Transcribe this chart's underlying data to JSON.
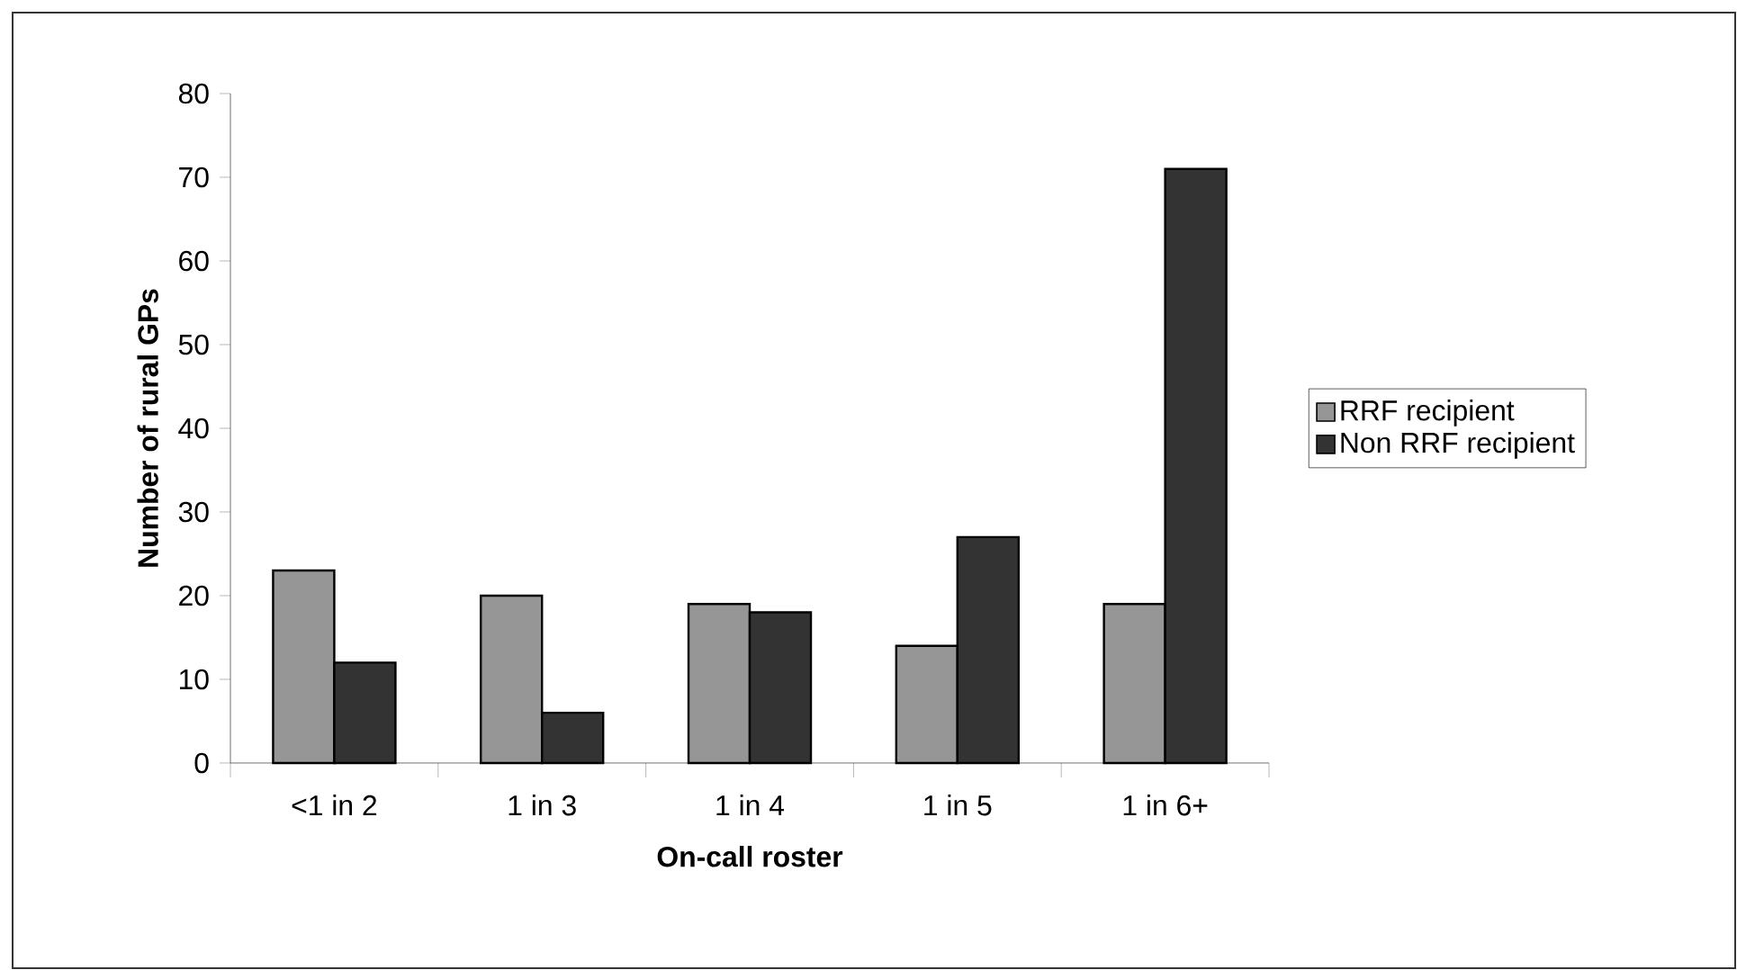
{
  "chart_data": {
    "type": "bar",
    "xlabel": "On-call roster",
    "ylabel": "Number of rural GPs",
    "categories": [
      "<1 in 2",
      "1 in 3",
      "1 in 4",
      "1 in 5",
      "1 in 6+"
    ],
    "series": [
      {
        "name": "RRF recipient",
        "color": "#969696",
        "values": [
          23,
          20,
          19,
          14,
          19
        ]
      },
      {
        "name": "Non RRF recipient",
        "color": "#333333",
        "values": [
          12,
          6,
          18,
          27,
          71
        ]
      }
    ],
    "ylim": [
      0,
      80
    ],
    "yticks": [
      0,
      10,
      20,
      30,
      40,
      50,
      60,
      70,
      80
    ],
    "grid": false,
    "legend": "right"
  }
}
